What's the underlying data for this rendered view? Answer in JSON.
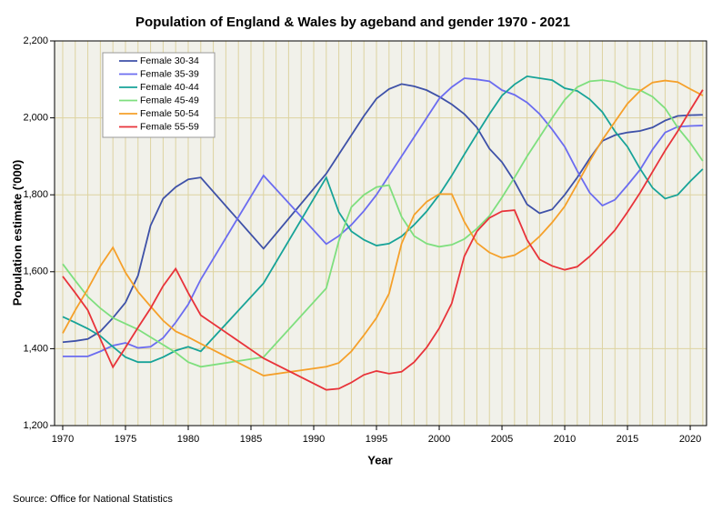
{
  "chart_data": {
    "type": "line",
    "title": "Population of England & Wales by ageband and gender 1970 - 2021",
    "x_label": "Year",
    "y_label": "Population estimate ('000)",
    "source": "Source: Office for National Statistics",
    "x": [
      1970,
      1971,
      1972,
      1973,
      1974,
      1975,
      1976,
      1977,
      1978,
      1979,
      1980,
      1981,
      1986,
      1991,
      1992,
      1993,
      1994,
      1995,
      1996,
      1997,
      1998,
      1999,
      2000,
      2001,
      2002,
      2003,
      2004,
      2005,
      2006,
      2007,
      2008,
      2009,
      2010,
      2011,
      2012,
      2013,
      2014,
      2015,
      2016,
      2017,
      2018,
      2019,
      2020,
      2021
    ],
    "series": [
      {
        "name": "Female 30-34",
        "color": "#3e51a8",
        "values": [
          1417,
          1420,
          1425,
          1445,
          1480,
          1520,
          1590,
          1720,
          1790,
          1820,
          1840,
          1845,
          1660,
          1855,
          1905,
          1955,
          2005,
          2050,
          2075,
          2088,
          2082,
          2072,
          2055,
          2035,
          2010,
          1975,
          1920,
          1885,
          1835,
          1775,
          1752,
          1762,
          1800,
          1845,
          1895,
          1940,
          1955,
          1962,
          1966,
          1975,
          1993,
          2005,
          2007,
          2008
        ]
      },
      {
        "name": "Female 35-39",
        "color": "#6b6cf0",
        "values": [
          1380,
          1380,
          1380,
          1393,
          1408,
          1415,
          1402,
          1405,
          1428,
          1468,
          1515,
          1580,
          1850,
          1672,
          1693,
          1722,
          1758,
          1800,
          1850,
          1900,
          1950,
          2000,
          2050,
          2080,
          2103,
          2100,
          2095,
          2072,
          2060,
          2040,
          2010,
          1970,
          1925,
          1862,
          1805,
          1772,
          1787,
          1825,
          1865,
          1918,
          1962,
          1977,
          1979,
          1980
        ]
      },
      {
        "name": "Female 40-44",
        "color": "#17a398",
        "values": [
          1483,
          1468,
          1452,
          1433,
          1405,
          1378,
          1365,
          1365,
          1378,
          1395,
          1405,
          1393,
          1570,
          1845,
          1755,
          1705,
          1683,
          1668,
          1673,
          1692,
          1722,
          1757,
          1800,
          1850,
          1905,
          1958,
          2010,
          2058,
          2087,
          2108,
          2103,
          2098,
          2077,
          2070,
          2048,
          2015,
          1965,
          1925,
          1868,
          1818,
          1790,
          1800,
          1835,
          1867
        ]
      },
      {
        "name": "Female 45-49",
        "color": "#7edf7e",
        "values": [
          1620,
          1577,
          1535,
          1505,
          1480,
          1465,
          1450,
          1430,
          1410,
          1390,
          1365,
          1353,
          1378,
          1557,
          1680,
          1768,
          1800,
          1820,
          1825,
          1743,
          1693,
          1673,
          1665,
          1670,
          1685,
          1712,
          1745,
          1793,
          1845,
          1900,
          1950,
          2000,
          2047,
          2080,
          2095,
          2098,
          2093,
          2077,
          2072,
          2055,
          2025,
          1975,
          1935,
          1888
        ]
      },
      {
        "name": "Female 50-54",
        "color": "#f5a02a",
        "values": [
          1440,
          1500,
          1555,
          1615,
          1663,
          1598,
          1548,
          1510,
          1473,
          1445,
          1430,
          1413,
          1330,
          1353,
          1363,
          1393,
          1435,
          1480,
          1543,
          1673,
          1748,
          1782,
          1802,
          1802,
          1730,
          1675,
          1650,
          1636,
          1643,
          1663,
          1692,
          1728,
          1770,
          1828,
          1888,
          1943,
          1990,
          2037,
          2070,
          2092,
          2097,
          2093,
          2075,
          2058
        ]
      },
      {
        "name": "Female 55-59",
        "color": "#e8333a",
        "values": [
          1588,
          1545,
          1500,
          1425,
          1352,
          1403,
          1455,
          1505,
          1563,
          1608,
          1545,
          1487,
          1375,
          1293,
          1296,
          1312,
          1332,
          1342,
          1335,
          1340,
          1365,
          1403,
          1453,
          1518,
          1640,
          1705,
          1740,
          1757,
          1760,
          1683,
          1632,
          1615,
          1605,
          1613,
          1640,
          1673,
          1708,
          1755,
          1805,
          1860,
          1915,
          1965,
          2020,
          2073
        ]
      }
    ],
    "xlim": [
      1969.35,
      2021.3
    ],
    "xticks": [
      1970,
      1975,
      1980,
      1985,
      1990,
      1995,
      2000,
      2005,
      2010,
      2015,
      2020
    ],
    "ylim": [
      1200,
      2200
    ],
    "yticks": [
      {
        "value": 1200,
        "label": "1,200"
      },
      {
        "value": 1400,
        "label": "1,400"
      },
      {
        "value": 1600,
        "label": "1,600"
      },
      {
        "value": 1800,
        "label": "1,800"
      },
      {
        "value": 2000,
        "label": "2,000"
      },
      {
        "value": 2200,
        "label": "2,200"
      }
    ],
    "grid": true,
    "x_grid_step": 1,
    "legend": "upper left"
  }
}
